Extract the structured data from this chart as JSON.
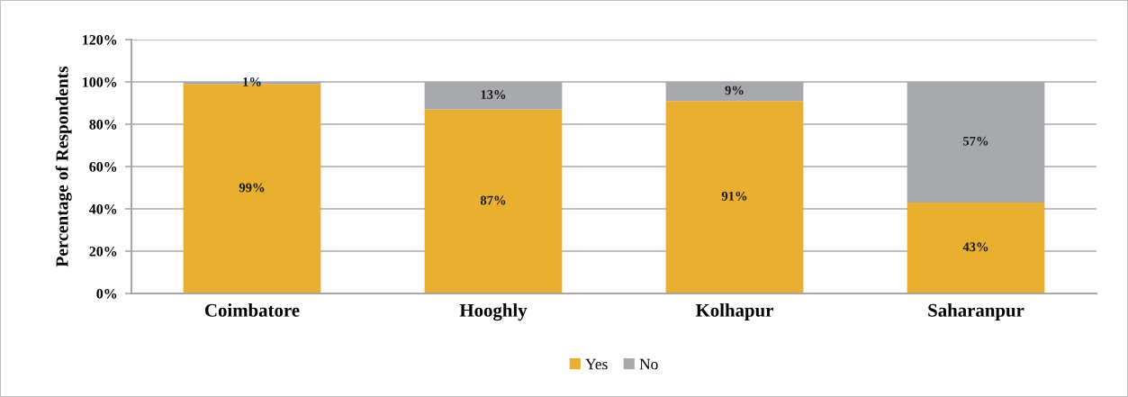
{
  "chart_data": {
    "type": "bar",
    "stacked": true,
    "ylabel": "Percentage of Respondents",
    "categories": [
      "Coimbatore",
      "Hooghly",
      "Kolhapur",
      "Saharanpur"
    ],
    "series": [
      {
        "name": "Yes",
        "color": "#e8af30",
        "values": [
          99,
          87,
          91,
          43
        ],
        "value_labels": [
          "99%",
          "87%",
          "91%",
          "43%"
        ]
      },
      {
        "name": "No",
        "color": "#a7a9ac",
        "values": [
          1,
          13,
          9,
          57
        ],
        "value_labels": [
          "1%",
          "13%",
          "9%",
          "57%"
        ]
      }
    ],
    "ylim": [
      0,
      120
    ],
    "yticks": [
      {
        "value": 0,
        "label": "0%"
      },
      {
        "value": 20,
        "label": "20%"
      },
      {
        "value": 40,
        "label": "40%"
      },
      {
        "value": 60,
        "label": "60%"
      },
      {
        "value": 80,
        "label": "80%"
      },
      {
        "value": 100,
        "label": "100%"
      },
      {
        "value": 120,
        "label": "120%"
      }
    ],
    "grid": "y",
    "legend": "bottom"
  }
}
